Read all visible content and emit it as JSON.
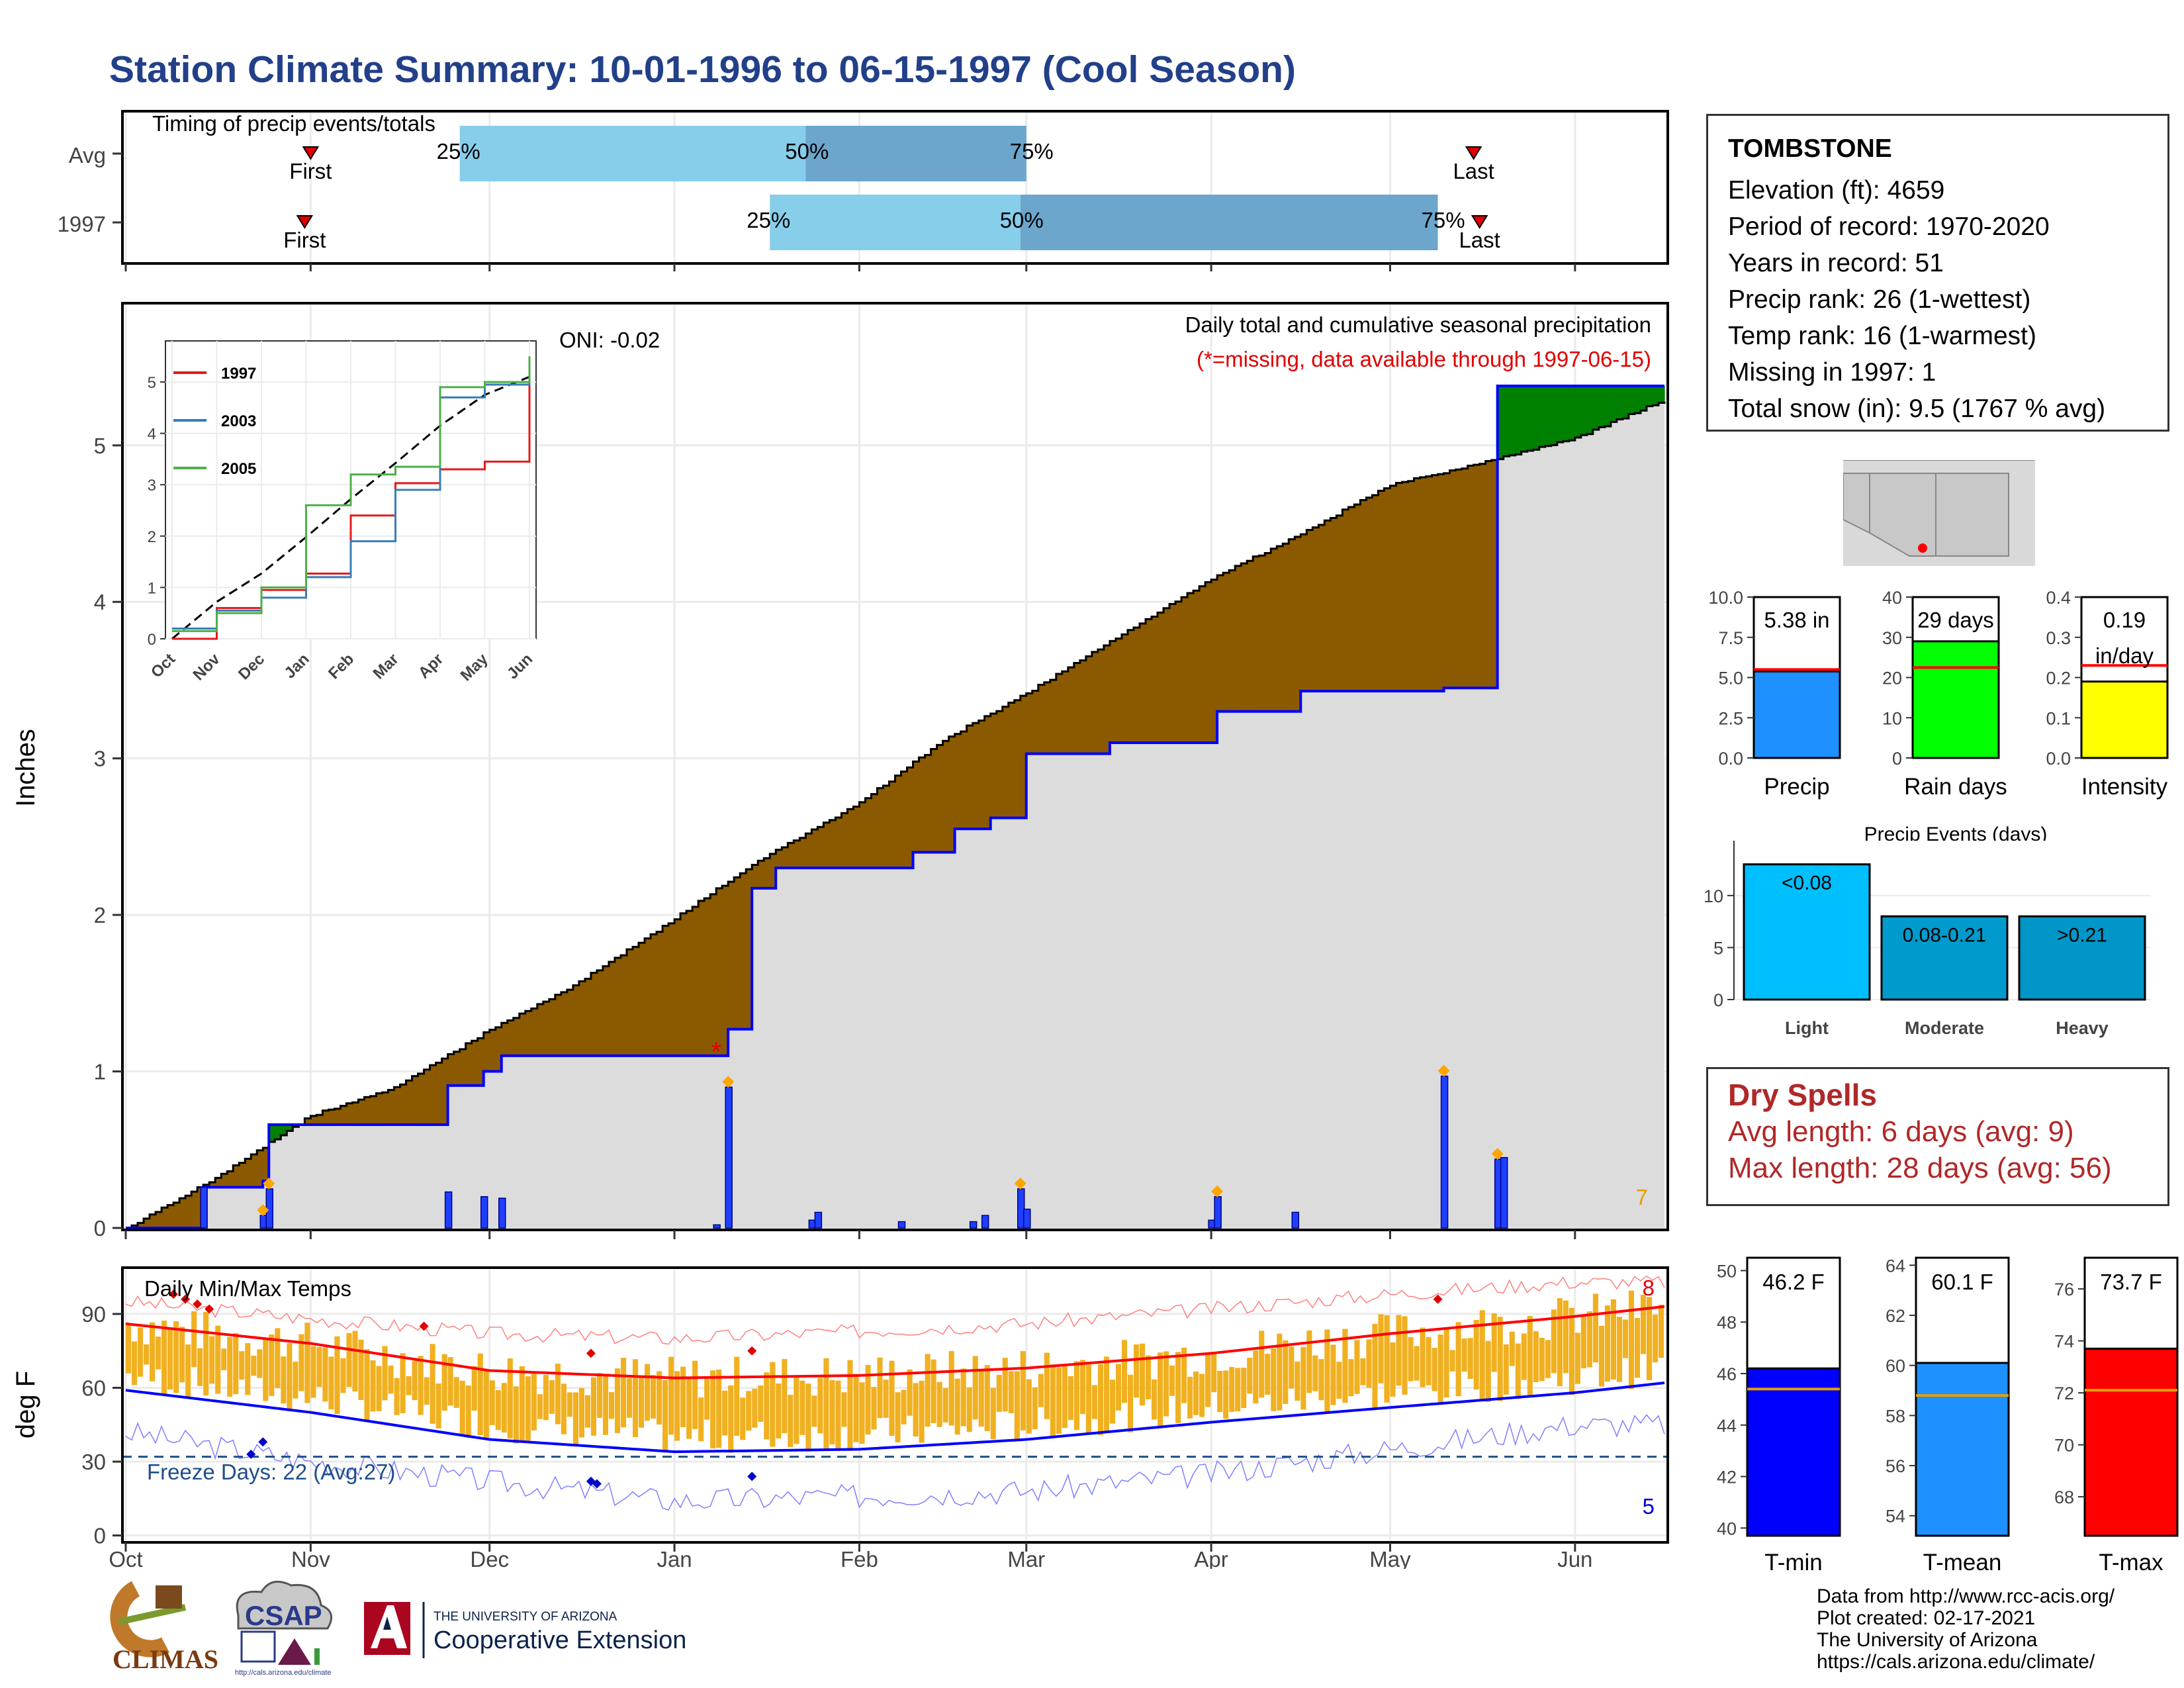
{
  "title": "Station Climate Summary: 10-01-1996 to 06-15-1997 (Cool Season)",
  "timing": {
    "label": "Timing of precip events/totals",
    "rows": [
      {
        "name": "Avg",
        "first": "First",
        "last": "Last",
        "p25": "25%",
        "p50": "50%",
        "p75": "75%"
      },
      {
        "name": "1997",
        "first": "First",
        "last": "Last",
        "p25": "25%",
        "p50": "50%",
        "p75": "75%"
      }
    ]
  },
  "station": {
    "name": "TOMBSTONE",
    "lines": [
      "Elevation (ft): 4659",
      "Period of record: 1970-2020",
      "Years in record: 51",
      "Precip rank: 26 (1-wettest)",
      "Temp rank: 16 (1-warmest)",
      "Missing in 1997: 1",
      "Total snow (in): 9.5 (1767 % avg)"
    ]
  },
  "precip_panel": {
    "y_title": "Inches",
    "note1": "Daily total and cumulative seasonal precipitation",
    "note2": "(*=missing, data available through 1997-06-15)",
    "oni": "ONI: -0.02",
    "corner_count": "7",
    "missing_marker": "*"
  },
  "inset": {
    "series": [
      {
        "name": "1997",
        "color": "#e41a1c"
      },
      {
        "name": "2003",
        "color": "#377eb8"
      },
      {
        "name": "2005",
        "color": "#4daf4a"
      }
    ],
    "months": [
      "Oct",
      "Nov",
      "Dec",
      "Jan",
      "Feb",
      "Mar",
      "Apr",
      "May",
      "Jun"
    ],
    "yticks": [
      "0",
      "1",
      "2",
      "3",
      "4",
      "5"
    ]
  },
  "temp_panel": {
    "y_title": "deg F",
    "label": "Daily Min/Max Temps",
    "freeze": "Freeze Days: 22 (Avg:27)",
    "max_count": "8",
    "min_count": "5"
  },
  "bars3": [
    {
      "label": "Precip",
      "value_text": "5.38 in",
      "value": 5.38,
      "avg": 5.5,
      "color": "#1e90ff",
      "ticks": [
        "0.0",
        "2.5",
        "5.0",
        "7.5",
        "10.0"
      ]
    },
    {
      "label": "Rain days",
      "value_text": "29 days",
      "value": 29,
      "avg": 22.5,
      "color": "#00ff00",
      "ticks": [
        "0",
        "10",
        "20",
        "30",
        "40"
      ]
    },
    {
      "label": "Intensity",
      "value_text": "0.19",
      "value_text2": "in/day",
      "value": 0.19,
      "avg": 0.23,
      "color": "#ffff00",
      "ticks": [
        "0.0",
        "0.1",
        "0.2",
        "0.3",
        "0.4"
      ]
    }
  ],
  "events": {
    "title": "Precip Events (days)",
    "yticks": [
      "0",
      "5",
      "10"
    ],
    "bars": [
      {
        "label": "Light",
        "text": "<0.08",
        "value": 13,
        "color": "#00bfff"
      },
      {
        "label": "Moderate",
        "text": "0.08-0.21",
        "value": 8,
        "color": "#009acd"
      },
      {
        "label": "Heavy",
        "text": ">0.21",
        "value": 8,
        "color": "#0096c8"
      }
    ]
  },
  "dry_spells": {
    "title": "Dry Spells",
    "avg": "Avg length: 6 days (avg: 9)",
    "max": "Max length: 28 days (avg: 56)"
  },
  "temp_bars": [
    {
      "label": "T-min",
      "value_text": "46.2 F",
      "value": 46.2,
      "avg": 45.4,
      "color": "#0000ff",
      "ticks": [
        "40",
        "42",
        "44",
        "46",
        "48",
        "50"
      ]
    },
    {
      "label": "T-mean",
      "value_text": "60.1 F",
      "value": 60.1,
      "avg": 58.8,
      "color": "#1e90ff",
      "ticks": [
        "54",
        "56",
        "58",
        "60",
        "62",
        "64"
      ]
    },
    {
      "label": "T-max",
      "value_text": "73.7 F",
      "value": 73.7,
      "avg": 72.1,
      "color": "#ff0000",
      "ticks": [
        "68",
        "70",
        "72",
        "74",
        "76"
      ]
    }
  ],
  "credits": [
    "Data from http://www.rcc-acis.org/",
    "Plot created: 02-17-2021",
    "The University of Arizona",
    "https://cals.arizona.edu/climate/"
  ],
  "logos": {
    "climas": "CLIMAS",
    "csap": "CSAP",
    "csap_url": "http://cals.arizona.edu/climate",
    "ua_small": "THE UNIVERSITY OF ARIZONA",
    "ua_big": "Cooperative Extension"
  },
  "colors": {
    "title": "#22408a",
    "observed_fill": "#8b5a00",
    "surplus_fill": "#008000",
    "avg_area": "#dcdcdc",
    "daily_bar": "#1f3fff"
  },
  "chart_data": [
    {
      "type": "area",
      "title": "Daily total and cumulative seasonal precipitation",
      "ylabel": "Inches",
      "ylim": [
        0,
        5.9
      ],
      "x_ticks": [
        "Oct",
        "Nov",
        "Dec",
        "Jan",
        "Feb",
        "Mar",
        "Apr",
        "May",
        "Jun"
      ],
      "y_ticks": [
        0,
        1,
        2,
        3,
        4,
        5
      ],
      "series": [
        {
          "name": "Average cumulative",
          "x": [
            "10-01",
            "10-15",
            "11-01",
            "11-15",
            "12-01",
            "12-15",
            "01-01",
            "01-15",
            "02-01",
            "02-15",
            "03-01",
            "03-15",
            "04-01",
            "04-15",
            "05-01",
            "05-15",
            "06-01",
            "06-15"
          ],
          "values": [
            0.0,
            0.3,
            0.72,
            0.9,
            1.27,
            1.55,
            1.98,
            2.35,
            2.72,
            3.12,
            3.42,
            3.75,
            4.15,
            4.42,
            4.75,
            4.88,
            5.05,
            5.28
          ]
        },
        {
          "name": "1997 cumulative",
          "x": [
            "10-01",
            "10-14",
            "10-24",
            "10-25",
            "11-24",
            "11-30",
            "12-03",
            "01-10",
            "01-14",
            "01-18",
            "02-10",
            "02-17",
            "02-23",
            "03-01",
            "03-15",
            "04-02",
            "04-16",
            "05-10",
            "05-19",
            "06-15"
          ],
          "values": [
            0.0,
            0.26,
            0.3,
            0.66,
            0.91,
            1.0,
            1.1,
            1.27,
            2.17,
            2.3,
            2.4,
            2.55,
            2.62,
            3.03,
            3.1,
            3.3,
            3.43,
            3.45,
            5.38,
            5.38
          ]
        },
        {
          "name": "1997 daily",
          "x": [
            "10-14",
            "10-24",
            "10-25",
            "11-24",
            "11-30",
            "12-03",
            "01-08",
            "01-10",
            "01-24",
            "01-25",
            "02-08",
            "02-20",
            "02-22",
            "02-28",
            "03-01",
            "04-01",
            "04-02",
            "04-15",
            "05-10",
            "05-19",
            "05-20"
          ],
          "values": [
            0.26,
            0.08,
            0.25,
            0.23,
            0.2,
            0.19,
            0.02,
            0.9,
            0.05,
            0.1,
            0.04,
            0.04,
            0.08,
            0.25,
            0.12,
            0.05,
            0.2,
            0.1,
            0.97,
            0.44,
            0.45
          ]
        }
      ]
    },
    {
      "type": "line",
      "title": "",
      "x": [
        "Oct",
        "Nov",
        "Dec",
        "Jan",
        "Feb",
        "Mar",
        "Apr",
        "May",
        "Jun"
      ],
      "ylim": [
        0,
        5.8
      ],
      "series": [
        {
          "name": "1997",
          "values": [
            0.0,
            0.6,
            0.95,
            1.27,
            2.4,
            3.03,
            3.3,
            3.45,
            5.38
          ]
        },
        {
          "name": "2003",
          "values": [
            0.2,
            0.55,
            0.8,
            1.2,
            1.9,
            2.9,
            4.7,
            4.95,
            5.08
          ]
        },
        {
          "name": "2005",
          "values": [
            0.15,
            0.5,
            1.0,
            2.6,
            3.2,
            3.35,
            4.9,
            5.0,
            5.5
          ]
        }
      ]
    },
    {
      "type": "line",
      "title": "Daily Min/Max Temps",
      "ylabel": "deg F",
      "ylim": [
        -2,
        108
      ],
      "x_ticks": [
        "Oct",
        "Nov",
        "Dec",
        "Jan",
        "Feb",
        "Mar",
        "Apr",
        "May",
        "Jun"
      ],
      "y_ticks": [
        0,
        30,
        60,
        90
      ],
      "freeze_line": 32,
      "series": [
        {
          "name": "Avg max",
          "x": [
            "Oct",
            "Nov",
            "Dec",
            "Jan",
            "Feb",
            "Mar",
            "Apr",
            "May",
            "Jun",
            "Jun-15"
          ],
          "values": [
            86,
            78,
            67,
            64,
            65,
            68,
            74,
            82,
            89,
            93
          ]
        },
        {
          "name": "Avg min",
          "x": [
            "Oct",
            "Nov",
            "Dec",
            "Jan",
            "Feb",
            "Mar",
            "Apr",
            "May",
            "Jun",
            "Jun-15"
          ],
          "values": [
            59,
            50,
            39,
            34,
            35,
            39,
            46,
            52,
            58,
            62
          ]
        },
        {
          "name": "Record max",
          "x": [
            "Oct",
            "Nov",
            "Dec",
            "Jan",
            "Feb",
            "Mar",
            "Apr",
            "May",
            "Jun"
          ],
          "values": [
            95,
            88,
            82,
            80,
            83,
            86,
            92,
            98,
            103
          ]
        },
        {
          "name": "Record min",
          "x": [
            "Oct",
            "Nov",
            "Dec",
            "Jan",
            "Feb",
            "Mar",
            "Apr",
            "May",
            "Jun"
          ],
          "values": [
            42,
            30,
            22,
            14,
            16,
            18,
            25,
            35,
            45
          ]
        }
      ]
    },
    {
      "type": "bar",
      "title": "Precip Events (days)",
      "categories": [
        "Light",
        "Moderate",
        "Heavy"
      ],
      "values": [
        13,
        8,
        8
      ]
    },
    {
      "type": "bar",
      "categories": [
        "Precip",
        "Rain days",
        "Intensity"
      ],
      "values": [
        5.38,
        29,
        0.19
      ]
    },
    {
      "type": "bar",
      "categories": [
        "T-min",
        "T-mean",
        "T-max"
      ],
      "values": [
        46.2,
        60.1,
        73.7
      ]
    }
  ]
}
